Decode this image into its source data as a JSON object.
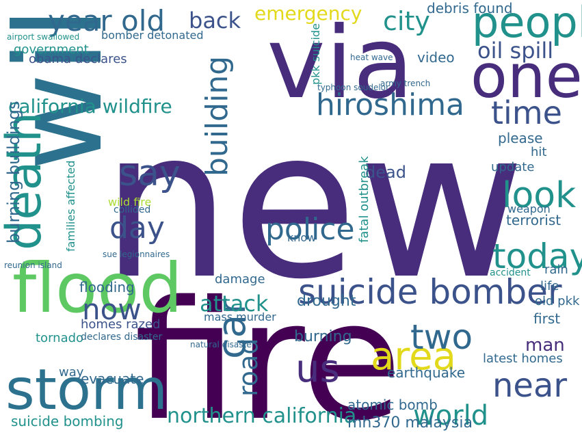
{
  "colors": {
    "background": "#ffffff",
    "dark_purple": "#440154",
    "purple": "#472d7b",
    "indigo": "#3b528b",
    "slate_blue": "#31688e",
    "teal_blue": "#2c728e",
    "teal": "#21918c",
    "sea_green": "#27ad81",
    "green": "#5ec962",
    "lime": "#aadc32",
    "yellow": "#e3d91b"
  },
  "words": [
    "new",
    "fire",
    "via",
    "will",
    "flood",
    "storm",
    "death",
    "one",
    "people",
    "suicide bomber",
    "car",
    "hiroshima",
    "police",
    "year old",
    "back",
    "emergency",
    "city",
    "time",
    "look",
    "oil spill",
    "california wildfire",
    "say",
    "day",
    "building",
    "today",
    "us",
    "area",
    "world",
    "near",
    "two",
    "northern california",
    "attack",
    "road",
    "now",
    "burning buildings",
    "flooding",
    "tornado",
    "homes razed",
    "evacuate",
    "suicide bombing",
    "mh370 malaysia",
    "atomic bomb",
    "earthquake",
    "latest homes",
    "man",
    "first",
    "old pkk",
    "life",
    "rain",
    "debris found",
    "obama declares",
    "government",
    "bomber detonated",
    "families affected",
    "wild fire",
    "collided",
    "dead",
    "fatal outbreak",
    "video",
    "terrorist",
    "weapon",
    "update",
    "hit",
    "please",
    "know",
    "damage",
    "drought",
    "burning",
    "mass murder",
    "accident",
    "way",
    "declares disaster",
    "pkk suicide",
    "airport swallowed",
    "army trench",
    "typhoon soudelor",
    "heat wave",
    "reunion island",
    "sue legionnaires",
    "natural disaster"
  ]
}
